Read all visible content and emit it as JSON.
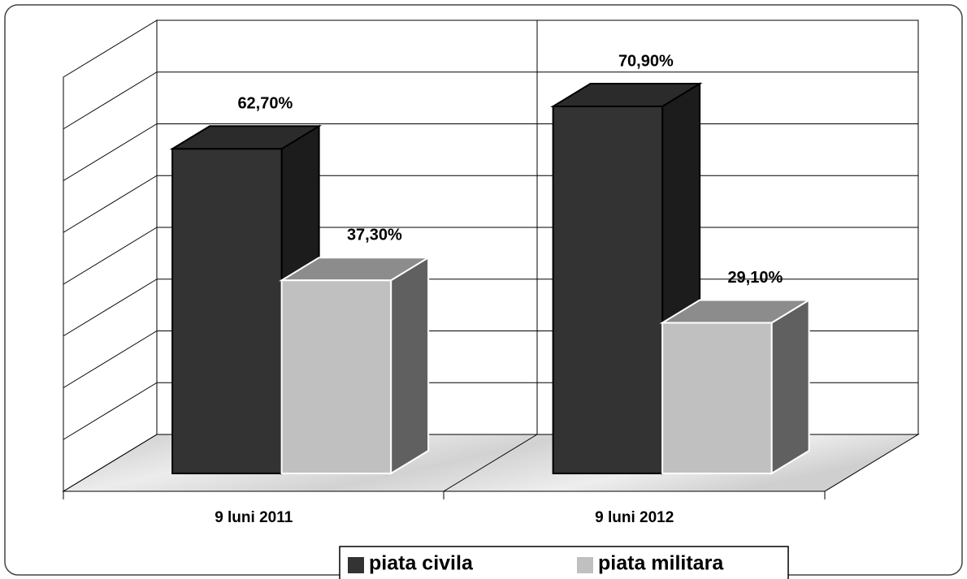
{
  "chart_data": {
    "type": "bar3d",
    "categories": [
      "9 luni 2011",
      "9 luni 2012"
    ],
    "series": [
      {
        "name": "piata civila",
        "color": "#333333",
        "values": [
          62.7,
          70.9
        ],
        "value_labels": [
          "62,70%",
          "70,90%"
        ]
      },
      {
        "name": "piata militara",
        "color": "#c0c0c0",
        "values": [
          37.3,
          29.1
        ],
        "value_labels": [
          "37,30%",
          "29,10%"
        ]
      }
    ],
    "ylim": [
      0,
      80
    ],
    "yticks": [
      0,
      10,
      20,
      30,
      40,
      50,
      60,
      70,
      80
    ],
    "grid": true,
    "legend": "bottom"
  }
}
